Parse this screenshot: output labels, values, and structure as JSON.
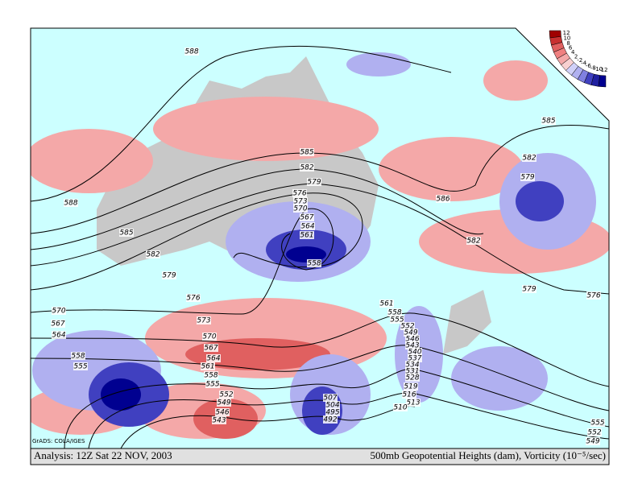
{
  "caption": {
    "left": "Analysis: 12Z Sat 22 NOV, 2003",
    "right": "500mb Geopotential Heights (dam), Vorticity (10⁻⁵/sec)"
  },
  "credit": "GrADS: COLA/IGES",
  "colorbar": {
    "labels": [
      12,
      10,
      8,
      6,
      4,
      2,
      -2,
      -4,
      -6,
      -8,
      -10,
      -12
    ]
  },
  "contour_labels": [
    588,
    588,
    585,
    582,
    579,
    576,
    573,
    570,
    567,
    564,
    561,
    558,
    555,
    552,
    549,
    546,
    543,
    570,
    567,
    564,
    558,
    555,
    585,
    582,
    579,
    576,
    573,
    570,
    567,
    564,
    561,
    558,
    586,
    582,
    579,
    576,
    585,
    582,
    579,
    561,
    558,
    555,
    552,
    549,
    546,
    543,
    540,
    537,
    534,
    531,
    528,
    519,
    516,
    513,
    510,
    507,
    504,
    495,
    492,
    555,
    552,
    549
  ]
}
